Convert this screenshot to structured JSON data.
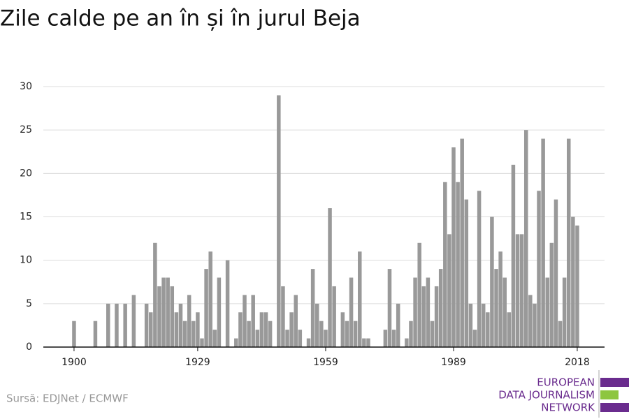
{
  "chart_data": {
    "type": "bar",
    "title": "Zile calde pe an în și în jurul Beja",
    "source": "Sursă: EDJNet / ECMWF",
    "logo": [
      "EUROPEAN",
      "DATA JOURNALISM",
      "NETWORK"
    ],
    "color": "#999999",
    "x": [
      1900,
      1901,
      1902,
      1903,
      1904,
      1905,
      1906,
      1907,
      1908,
      1909,
      1910,
      1911,
      1912,
      1913,
      1914,
      1915,
      1916,
      1917,
      1918,
      1919,
      1920,
      1921,
      1922,
      1923,
      1924,
      1925,
      1926,
      1927,
      1928,
      1929,
      1930,
      1931,
      1932,
      1933,
      1934,
      1935,
      1936,
      1937,
      1938,
      1939,
      1940,
      1941,
      1942,
      1943,
      1944,
      1945,
      1946,
      1947,
      1948,
      1949,
      1950,
      1951,
      1952,
      1953,
      1954,
      1955,
      1956,
      1957,
      1958,
      1959,
      1960,
      1961,
      1962,
      1963,
      1964,
      1965,
      1966,
      1967,
      1968,
      1969,
      1970,
      1971,
      1972,
      1973,
      1974,
      1975,
      1976,
      1977,
      1978,
      1979,
      1980,
      1981,
      1982,
      1983,
      1984,
      1985,
      1986,
      1987,
      1988,
      1989,
      1990,
      1991,
      1992,
      1993,
      1994,
      1995,
      1996,
      1997,
      1998,
      1999,
      2000,
      2001,
      2002,
      2003,
      2004,
      2005,
      2006,
      2007,
      2008,
      2009,
      2010,
      2011,
      2012,
      2013,
      2014,
      2015,
      2016,
      2017,
      2018
    ],
    "values": [
      3,
      0,
      0,
      0,
      0,
      3,
      0,
      0,
      5,
      0,
      5,
      0,
      5,
      0,
      6,
      0,
      0,
      5,
      4,
      12,
      7,
      8,
      8,
      7,
      4,
      5,
      3,
      6,
      3,
      4,
      1,
      9,
      11,
      2,
      8,
      0,
      10,
      0,
      1,
      4,
      6,
      3,
      6,
      2,
      4,
      4,
      3,
      0,
      29,
      7,
      2,
      4,
      6,
      2,
      0,
      1,
      9,
      5,
      3,
      2,
      16,
      7,
      0,
      4,
      3,
      8,
      3,
      11,
      1,
      1,
      0,
      0,
      0,
      2,
      9,
      2,
      5,
      0,
      1,
      3,
      8,
      12,
      7,
      8,
      3,
      7,
      9,
      19,
      13,
      23,
      19,
      24,
      17,
      5,
      2,
      18,
      5,
      4,
      15,
      9,
      11,
      8,
      4,
      21,
      13,
      13,
      25,
      6,
      5,
      18,
      24,
      8,
      12,
      17,
      3,
      8,
      24,
      15,
      14
    ],
    "xlim": [
      1892.8,
      2024.4
    ],
    "xticks": [
      1900,
      1929,
      1959,
      1989,
      2018
    ],
    "ylim": [
      0,
      30
    ],
    "yticks": [
      0,
      5,
      10,
      15,
      20,
      25,
      30
    ],
    "grid": true
  }
}
